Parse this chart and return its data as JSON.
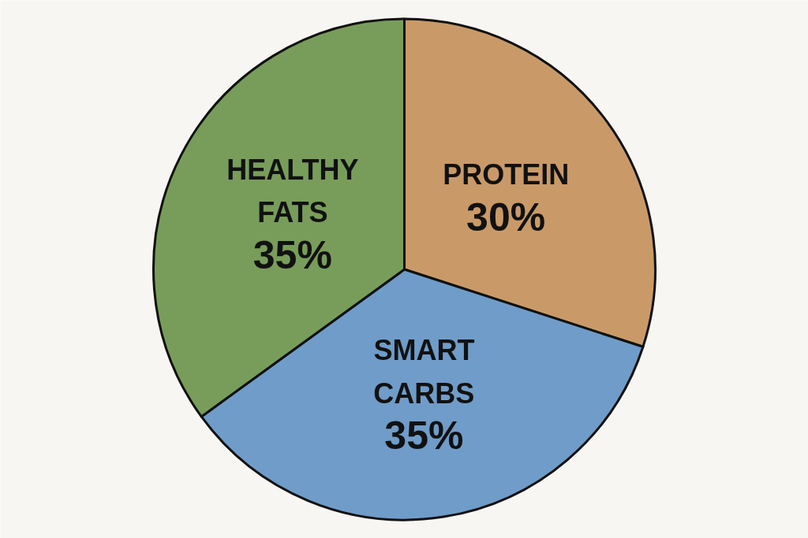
{
  "chart_data": {
    "type": "pie",
    "categories": [
      "PROTEIN",
      "SMART CARBS",
      "HEALTHY FATS"
    ],
    "values": [
      30,
      35,
      35
    ],
    "value_labels": [
      "30%",
      "35%",
      "35%"
    ],
    "colors": [
      "#c99a68",
      "#6f9cc9",
      "#789d5a"
    ]
  }
}
